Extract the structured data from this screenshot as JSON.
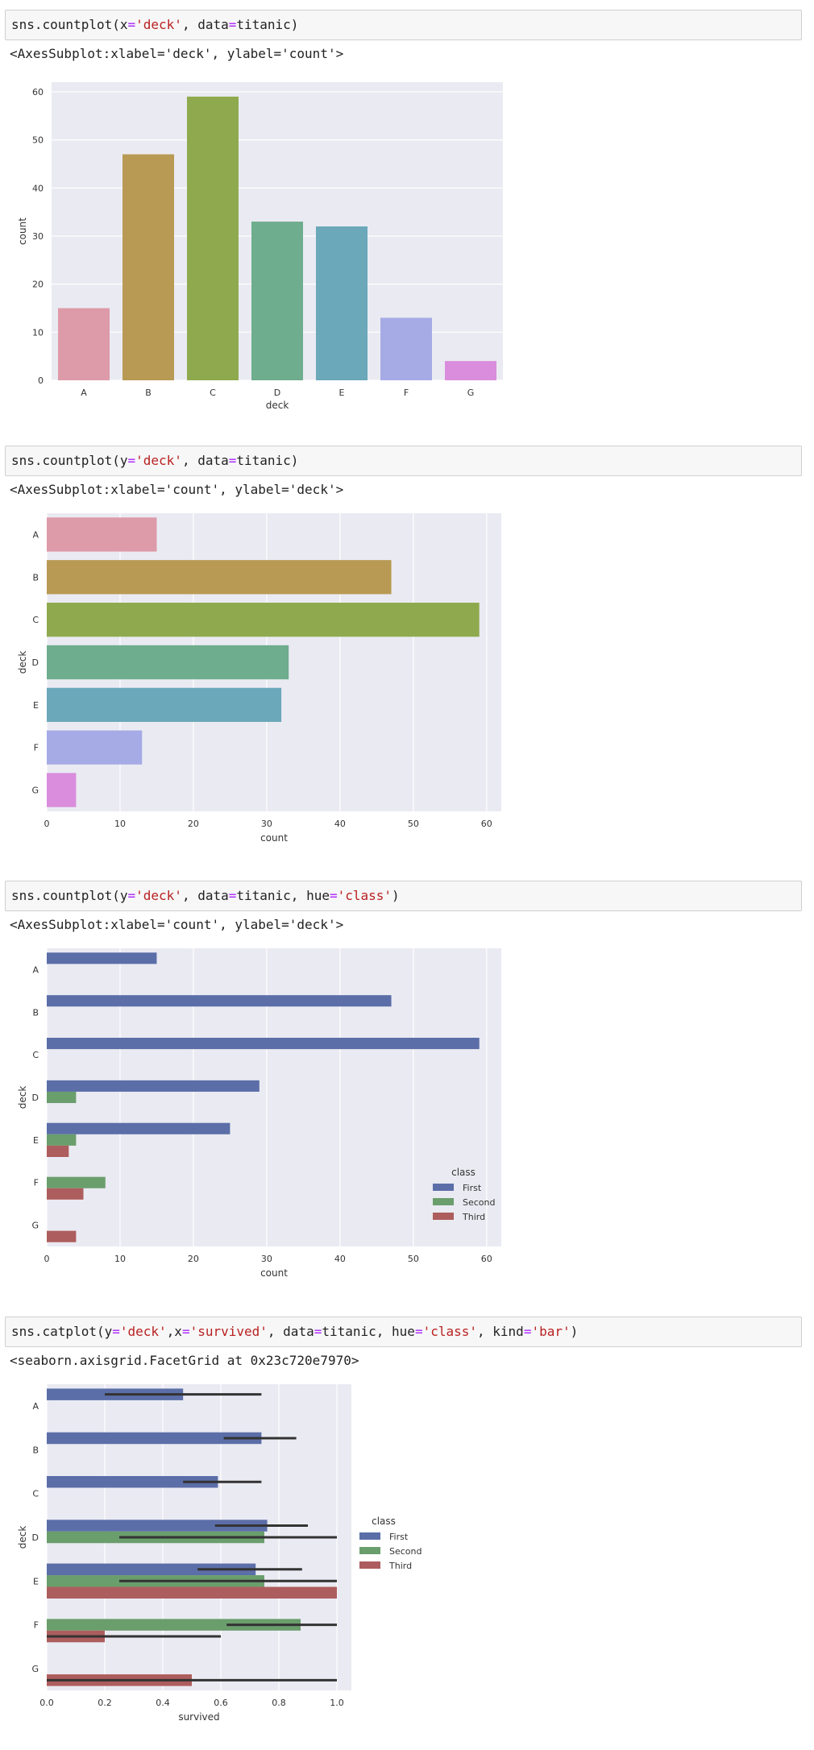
{
  "cells": [
    {
      "code": [
        {
          "t": "sns.countplot(",
          "c": ""
        },
        {
          "t": "x",
          "c": ""
        },
        {
          "t": "=",
          "c": "o"
        },
        {
          "t": "'deck'",
          "c": "s"
        },
        {
          "t": ", data",
          "c": ""
        },
        {
          "t": "=",
          "c": "o"
        },
        {
          "t": "titanic)",
          "c": ""
        }
      ],
      "output": "<AxesSubplot:xlabel='deck', ylabel='count'>"
    },
    {
      "code": [
        {
          "t": "sns.countplot(",
          "c": ""
        },
        {
          "t": "y",
          "c": ""
        },
        {
          "t": "=",
          "c": "o"
        },
        {
          "t": "'deck'",
          "c": "s"
        },
        {
          "t": ", data",
          "c": ""
        },
        {
          "t": "=",
          "c": "o"
        },
        {
          "t": "titanic)",
          "c": ""
        }
      ],
      "output": "<AxesSubplot:xlabel='count', ylabel='deck'>"
    },
    {
      "code": [
        {
          "t": "sns.countplot(",
          "c": ""
        },
        {
          "t": "y",
          "c": ""
        },
        {
          "t": "=",
          "c": "o"
        },
        {
          "t": "'deck'",
          "c": "s"
        },
        {
          "t": ", data",
          "c": ""
        },
        {
          "t": "=",
          "c": "o"
        },
        {
          "t": "titanic, hue",
          "c": ""
        },
        {
          "t": "=",
          "c": "o"
        },
        {
          "t": "'class'",
          "c": "s"
        },
        {
          "t": ")",
          "c": ""
        }
      ],
      "output": "<AxesSubplot:xlabel='count', ylabel='deck'>"
    },
    {
      "code": [
        {
          "t": "sns.catplot(",
          "c": ""
        },
        {
          "t": "y",
          "c": ""
        },
        {
          "t": "=",
          "c": "o"
        },
        {
          "t": "'deck'",
          "c": "s"
        },
        {
          "t": ",x",
          "c": ""
        },
        {
          "t": "=",
          "c": "o"
        },
        {
          "t": "'survived'",
          "c": "s"
        },
        {
          "t": ", data",
          "c": ""
        },
        {
          "t": "=",
          "c": "o"
        },
        {
          "t": "titanic, hue",
          "c": ""
        },
        {
          "t": "=",
          "c": "o"
        },
        {
          "t": "'class'",
          "c": "s"
        },
        {
          "t": ", kind",
          "c": ""
        },
        {
          "t": "=",
          "c": "o"
        },
        {
          "t": "'bar'",
          "c": "s"
        },
        {
          "t": ")",
          "c": ""
        }
      ],
      "output": "<seaborn.axisgrid.FacetGrid at 0x23c720e7970>"
    }
  ],
  "colors": {
    "decks": [
      "#dd9aa8",
      "#b89a54",
      "#8faa4e",
      "#6ead8d",
      "#6aa8ba",
      "#a6abe6",
      "#d98ddc"
    ],
    "classes": [
      "#5b6ea8",
      "#6a9e6c",
      "#ad5d5d"
    ],
    "plot_bg": "#eaeaf2",
    "grid": "#ffffff",
    "errbar": "#333333"
  },
  "chart_data": [
    {
      "type": "bar",
      "orientation": "vertical",
      "categories": [
        "A",
        "B",
        "C",
        "D",
        "E",
        "F",
        "G"
      ],
      "values": [
        15,
        47,
        59,
        33,
        32,
        13,
        4
      ],
      "xlabel": "deck",
      "ylabel": "count",
      "ylim": [
        0,
        62
      ],
      "yticks": [
        0,
        10,
        20,
        30,
        40,
        50,
        60
      ],
      "grid": true
    },
    {
      "type": "bar",
      "orientation": "horizontal",
      "categories": [
        "A",
        "B",
        "C",
        "D",
        "E",
        "F",
        "G"
      ],
      "values": [
        15,
        47,
        59,
        33,
        32,
        13,
        4
      ],
      "xlabel": "count",
      "ylabel": "deck",
      "xlim": [
        0,
        62
      ],
      "xticks": [
        0,
        10,
        20,
        30,
        40,
        50,
        60
      ],
      "grid": true
    },
    {
      "type": "bar",
      "orientation": "horizontal",
      "categories": [
        "A",
        "B",
        "C",
        "D",
        "E",
        "F",
        "G"
      ],
      "series": [
        {
          "name": "First",
          "values": [
            15,
            47,
            59,
            29,
            25,
            0,
            0
          ]
        },
        {
          "name": "Second",
          "values": [
            0,
            0,
            0,
            4,
            4,
            8,
            0
          ]
        },
        {
          "name": "Third",
          "values": [
            0,
            0,
            0,
            0,
            3,
            5,
            4
          ]
        }
      ],
      "xlabel": "count",
      "ylabel": "deck",
      "xlim": [
        0,
        62
      ],
      "xticks": [
        0,
        10,
        20,
        30,
        40,
        50,
        60
      ],
      "legend_title": "class",
      "legend_position": "lower-right-inside",
      "grid": true
    },
    {
      "type": "bar",
      "orientation": "horizontal",
      "categories": [
        "A",
        "B",
        "C",
        "D",
        "E",
        "F",
        "G"
      ],
      "series": [
        {
          "name": "First",
          "values": [
            0.47,
            0.74,
            0.59,
            0.76,
            0.72,
            null,
            null
          ],
          "ci": [
            [
              0.2,
              0.74
            ],
            [
              0.61,
              0.86
            ],
            [
              0.47,
              0.74
            ],
            [
              0.58,
              0.9
            ],
            [
              0.52,
              0.88
            ],
            null,
            null
          ]
        },
        {
          "name": "Second",
          "values": [
            null,
            null,
            null,
            0.75,
            0.75,
            0.875,
            null
          ],
          "ci": [
            null,
            null,
            null,
            [
              0.25,
              1.0
            ],
            [
              0.25,
              1.0
            ],
            [
              0.62,
              1.0
            ],
            null
          ]
        },
        {
          "name": "Third",
          "values": [
            null,
            null,
            null,
            null,
            1.0,
            0.2,
            0.5
          ],
          "ci": [
            null,
            null,
            null,
            null,
            [
              1.0,
              1.0
            ],
            [
              0.0,
              0.6
            ],
            [
              0.0,
              1.0
            ]
          ]
        }
      ],
      "xlabel": "survived",
      "ylabel": "deck",
      "xlim": [
        0,
        1.05
      ],
      "xticks": [
        0.0,
        0.2,
        0.4,
        0.6,
        0.8,
        1.0
      ],
      "xticklabels": [
        "0.0",
        "0.2",
        "0.4",
        "0.6",
        "0.8",
        "1.0"
      ],
      "legend_title": "class",
      "legend_position": "right-outside",
      "grid": true
    }
  ]
}
